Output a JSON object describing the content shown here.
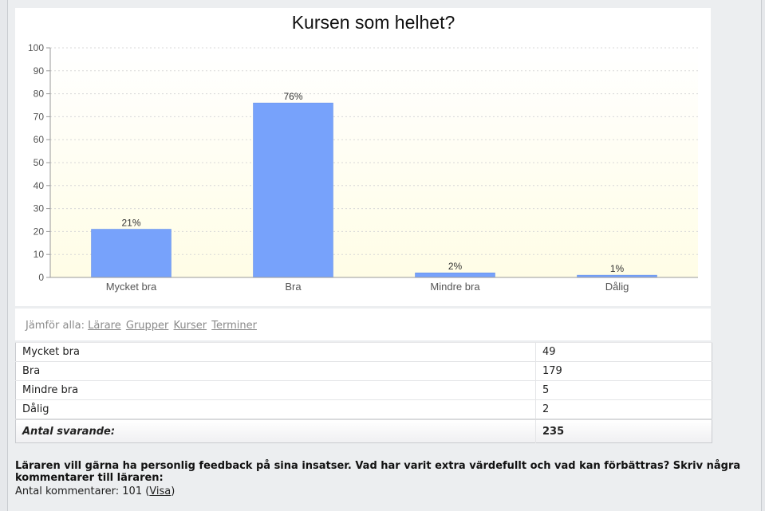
{
  "chart_data": {
    "type": "bar",
    "title": "Kursen som helhet?",
    "categories": [
      "Mycket bra",
      "Bra",
      "Mindre bra",
      "Dålig"
    ],
    "values": [
      21,
      76,
      2,
      1
    ],
    "data_labels": [
      "21%",
      "76%",
      "2%",
      "1%"
    ],
    "ylim": [
      0,
      100
    ],
    "yticks": [
      "0",
      "10",
      "20",
      "30",
      "40",
      "50",
      "60",
      "70",
      "80",
      "90",
      "100"
    ],
    "bar_color": "#77a2fb",
    "plot_background": [
      "#fffde6",
      "#ffffff"
    ],
    "grid": true
  },
  "compare": {
    "label": "Jämför alla:",
    "links": [
      "Lärare",
      "Grupper",
      "Kurser",
      "Terminer"
    ]
  },
  "table": {
    "rows": [
      {
        "label": "Mycket bra",
        "value": "49"
      },
      {
        "label": "Bra",
        "value": "179"
      },
      {
        "label": "Mindre bra",
        "value": "5"
      },
      {
        "label": "Dålig",
        "value": "2"
      }
    ],
    "total_label": "Antal svarande:",
    "total_value": "235"
  },
  "question": {
    "text": "Läraren vill gärna ha personlig feedback på sina insatser. Vad har varit extra värdefullt och vad kan förbättras? Skriv några kommentarer till läraren:",
    "count_label": "Antal kommentarer: 101 (",
    "link_label": "Visa",
    "close_paren": ")"
  }
}
